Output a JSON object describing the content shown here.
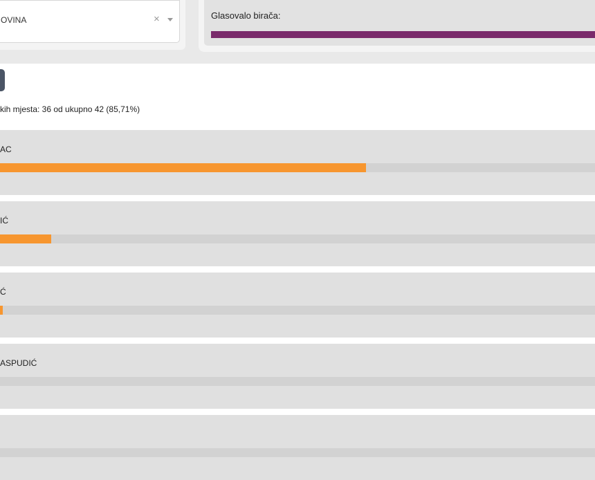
{
  "filter": {
    "selected_value": "OVINA",
    "clear_symbol": "×"
  },
  "turnout": {
    "label": "Glasovalo birača:",
    "bar_color": "#7a2b6b"
  },
  "summary": {
    "counted_text": "kih mjesta: 36 od ukupno 42 (85,71%)"
  },
  "candidates": [
    {
      "name": "AC",
      "fill_fraction": 0.615,
      "color": "#f7962f"
    },
    {
      "name": "IĆ",
      "fill_fraction": 0.086,
      "color": "#f7962f"
    },
    {
      "name": "Ć",
      "fill_fraction": 0.005,
      "color": "#f7962f"
    },
    {
      "name": "ASPUDIĆ",
      "fill_fraction": 0.0,
      "color": "#f7962f"
    },
    {
      "name": "",
      "fill_fraction": 0.0,
      "color": "#f7962f"
    }
  ]
}
